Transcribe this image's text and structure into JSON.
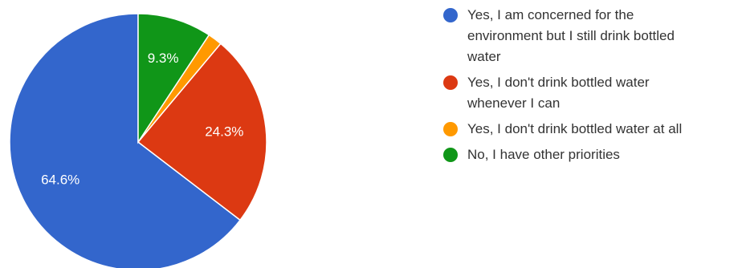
{
  "chart_data": {
    "type": "pie",
    "start_angle_deg": 90,
    "direction": "counterclockwise",
    "categories": [
      "Yes, I am concerned for the environment but I still drink bottled water",
      "Yes, I don't drink bottled water whenever I can",
      "Yes, I don't drink bottled water at all",
      "No, I have other priorities"
    ],
    "values": [
      64.6,
      24.3,
      1.8,
      9.3
    ],
    "value_labels": [
      "64.6%",
      "24.3%",
      "",
      "9.3%"
    ],
    "colors": [
      "#3366cc",
      "#dc3912",
      "#ff9900",
      "#109618"
    ],
    "legend_placement": "right",
    "legend": [
      {
        "lines": [
          "Yes, I am concerned for the",
          "environment but I still drink bottled",
          "water"
        ],
        "color": "#3366cc"
      },
      {
        "lines": [
          "Yes, I don't drink bottled water",
          "whenever I can"
        ],
        "color": "#dc3912"
      },
      {
        "lines": [
          "Yes, I don't drink bottled water at all"
        ],
        "color": "#ff9900"
      },
      {
        "lines": [
          "No, I have other priorities"
        ],
        "color": "#109618"
      }
    ]
  }
}
